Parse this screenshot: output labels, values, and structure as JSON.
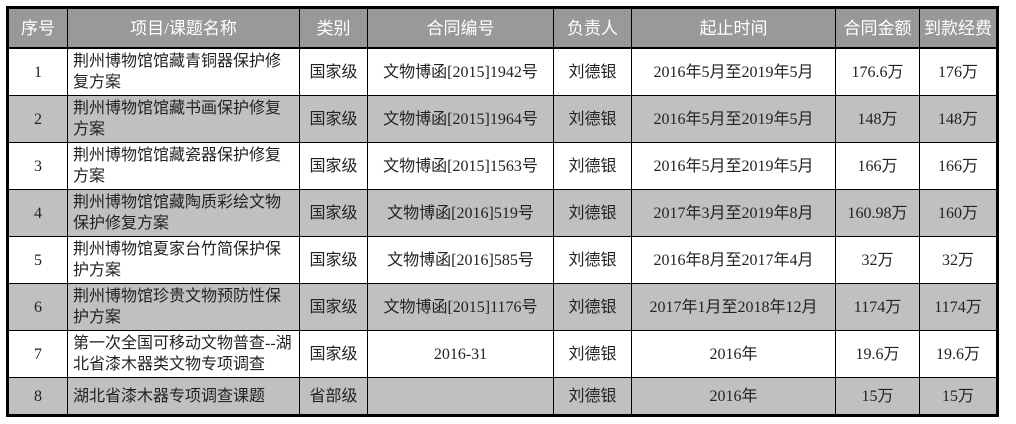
{
  "colors": {
    "header_bg": "#999999",
    "alt_row_bg": "#c0c0c0",
    "border_color": "#000000",
    "header_text": "#ffffff",
    "body_text": "#222222",
    "page_bg": "#ffffff"
  },
  "table": {
    "columns": [
      "序号",
      "项目/课题名称",
      "类别",
      "合同编号",
      "负责人",
      "起止时间",
      "合同金额",
      "到款经费"
    ],
    "rows": [
      {
        "no": "1",
        "name": "荆州博物馆馆藏青铜器保护修复方案",
        "category": "国家级",
        "contract": "文物博函[2015]1942号",
        "leader": "刘德银",
        "period": "2016年5月至2019年5月",
        "amount": "176.6万",
        "received": "176万"
      },
      {
        "no": "2",
        "name": "荆州博物馆馆藏书画保护修复方案",
        "category": "国家级",
        "contract": "文物博函[2015]1964号",
        "leader": "刘德银",
        "period": "2016年5月至2019年5月",
        "amount": "148万",
        "received": "148万"
      },
      {
        "no": "3",
        "name": "荆州博物馆馆藏瓷器保护修复方案",
        "category": "国家级",
        "contract": "文物博函[2015]1563号",
        "leader": "刘德银",
        "period": "2016年5月至2019年5月",
        "amount": "166万",
        "received": "166万"
      },
      {
        "no": "4",
        "name": "荆州博物馆馆藏陶质彩绘文物保护修复方案",
        "category": "国家级",
        "contract": "文物博函[2016]519号",
        "leader": "刘德银",
        "period": "2017年3月至2019年8月",
        "amount": "160.98万",
        "received": "160万"
      },
      {
        "no": "5",
        "name": "荆州博物馆夏家台竹简保护保护方案",
        "category": "国家级",
        "contract": "文物博函[2016]585号",
        "leader": "刘德银",
        "period": "2016年8月至2017年4月",
        "amount": "32万",
        "received": "32万"
      },
      {
        "no": "6",
        "name": "荆州博物馆珍贵文物预防性保护方案",
        "category": "国家级",
        "contract": "文物博函[2015]1176号",
        "leader": "刘德银",
        "period": "2017年1月至2018年12月",
        "amount": "1174万",
        "received": "1174万"
      },
      {
        "no": "7",
        "name": "第一次全国可移动文物普查--湖北省漆木器类文物专项调查",
        "category": "国家级",
        "contract": "2016-31",
        "leader": "刘德银",
        "period": "2016年",
        "amount": "19.6万",
        "received": "19.6万"
      },
      {
        "no": "8",
        "name": "湖北省漆木器专项调查课题",
        "category": "省部级",
        "contract": "",
        "leader": "刘德银",
        "period": "2016年",
        "amount": "15万",
        "received": "15万"
      }
    ]
  }
}
